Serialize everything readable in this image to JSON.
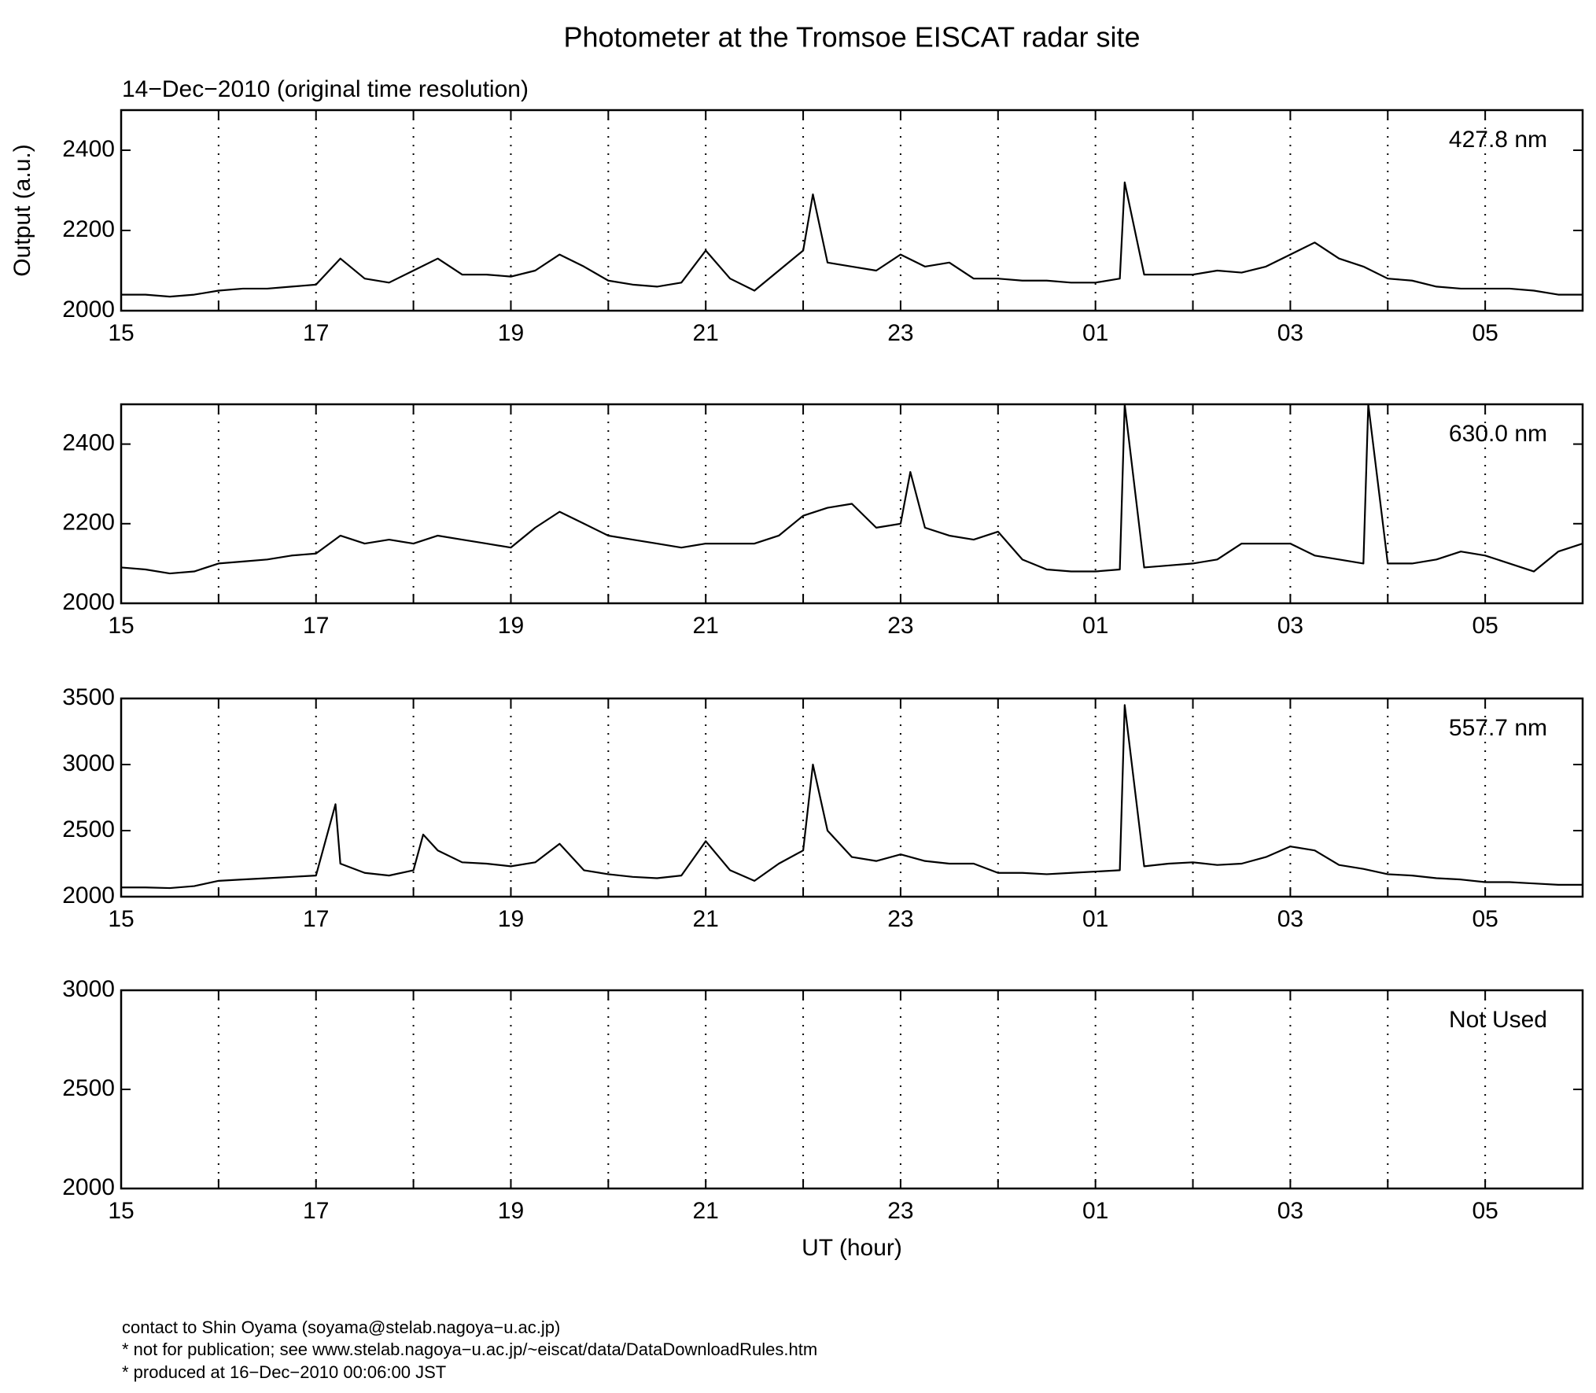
{
  "title": "Photometer at the Tromsoe EISCAT radar site",
  "subtitle": "14−Dec−2010 (original time resolution)",
  "footer": [
    "contact to Shin Oyama (soyama@stelab.nagoya−u.ac.jp)",
    "* not for publication; see www.stelab.nagoya−u.ac.jp/~eiscat/data/DataDownloadRules.htm",
    "* produced at 16−Dec−2010 00:06:00 JST"
  ],
  "chart_data": [
    {
      "type": "line",
      "annotation": "427.8 nm",
      "ylabel": "Output (a.u.)",
      "grid": true,
      "xlim": [
        15,
        30
      ],
      "xticks": [
        15,
        17,
        19,
        21,
        23,
        {
          "value": 25,
          "label": "01"
        },
        {
          "value": 27,
          "label": "03"
        },
        {
          "value": 29,
          "label": "05"
        }
      ],
      "xminor_ticks": [
        16,
        18,
        20,
        22,
        24,
        26,
        28
      ],
      "ylim": [
        2000,
        2500
      ],
      "yticks": [
        2000,
        2200,
        2400
      ],
      "x": [
        15,
        15.25,
        15.5,
        15.75,
        16,
        16.25,
        16.5,
        16.75,
        17,
        17.25,
        17.5,
        17.75,
        18,
        18.25,
        18.5,
        18.75,
        19,
        19.25,
        19.5,
        19.75,
        20,
        20.25,
        20.5,
        20.75,
        21,
        21.25,
        21.5,
        21.75,
        22,
        22.1,
        22.25,
        22.5,
        22.75,
        23,
        23.25,
        23.5,
        23.75,
        24,
        24.25,
        24.5,
        24.75,
        25,
        25.25,
        25.3,
        25.5,
        25.75,
        26,
        26.25,
        26.5,
        26.75,
        27,
        27.25,
        27.5,
        27.75,
        28,
        28.25,
        28.5,
        28.75,
        29,
        29.25,
        29.5,
        29.75,
        30
      ],
      "series": [
        {
          "name": "427.8 nm",
          "color": "#000000",
          "values": [
            2040,
            2040,
            2035,
            2040,
            2050,
            2055,
            2055,
            2060,
            2065,
            2130,
            2080,
            2070,
            2100,
            2130,
            2090,
            2090,
            2085,
            2100,
            2140,
            2110,
            2075,
            2065,
            2060,
            2070,
            2150,
            2080,
            2050,
            2100,
            2150,
            2290,
            2120,
            2110,
            2100,
            2140,
            2110,
            2120,
            2080,
            2080,
            2075,
            2075,
            2070,
            2070,
            2080,
            2320,
            2090,
            2090,
            2090,
            2100,
            2095,
            2110,
            2140,
            2170,
            2130,
            2110,
            2080,
            2075,
            2060,
            2055,
            2055,
            2055,
            2050,
            2040,
            2040
          ]
        }
      ]
    },
    {
      "type": "line",
      "annotation": "630.0 nm",
      "grid": true,
      "xlim": [
        15,
        30
      ],
      "xticks": [
        15,
        17,
        19,
        21,
        23,
        {
          "value": 25,
          "label": "01"
        },
        {
          "value": 27,
          "label": "03"
        },
        {
          "value": 29,
          "label": "05"
        }
      ],
      "xminor_ticks": [
        16,
        18,
        20,
        22,
        24,
        26,
        28
      ],
      "ylim": [
        2000,
        2500
      ],
      "yticks": [
        2000,
        2200,
        2400
      ],
      "x": [
        15,
        15.25,
        15.5,
        15.75,
        16,
        16.25,
        16.5,
        16.75,
        17,
        17.25,
        17.5,
        17.75,
        18,
        18.25,
        18.5,
        18.75,
        19,
        19.25,
        19.5,
        19.75,
        20,
        20.25,
        20.5,
        20.75,
        21,
        21.25,
        21.5,
        21.75,
        22,
        22.25,
        22.5,
        22.75,
        23,
        23.1,
        23.25,
        23.5,
        23.75,
        24,
        24.25,
        24.5,
        24.75,
        25,
        25.25,
        25.3,
        25.5,
        25.75,
        26,
        26.25,
        26.5,
        26.75,
        27,
        27.25,
        27.5,
        27.75,
        27.8,
        28,
        28.25,
        28.5,
        28.75,
        29,
        29.25,
        29.5,
        29.75,
        30
      ],
      "series": [
        {
          "name": "630.0 nm",
          "color": "#000000",
          "values": [
            2090,
            2085,
            2075,
            2080,
            2100,
            2105,
            2110,
            2120,
            2125,
            2170,
            2150,
            2160,
            2150,
            2170,
            2160,
            2150,
            2140,
            2190,
            2230,
            2200,
            2170,
            2160,
            2150,
            2140,
            2150,
            2150,
            2150,
            2170,
            2220,
            2240,
            2250,
            2190,
            2200,
            2330,
            2190,
            2170,
            2160,
            2180,
            2110,
            2085,
            2080,
            2080,
            2085,
            2500,
            2090,
            2095,
            2100,
            2110,
            2150,
            2150,
            2150,
            2120,
            2110,
            2100,
            2500,
            2100,
            2100,
            2110,
            2130,
            2120,
            2100,
            2080,
            2130,
            2150
          ]
        }
      ]
    },
    {
      "type": "line",
      "annotation": "557.7 nm",
      "grid": true,
      "xlim": [
        15,
        30
      ],
      "xticks": [
        15,
        17,
        19,
        21,
        23,
        {
          "value": 25,
          "label": "01"
        },
        {
          "value": 27,
          "label": "03"
        },
        {
          "value": 29,
          "label": "05"
        }
      ],
      "xminor_ticks": [
        16,
        18,
        20,
        22,
        24,
        26,
        28
      ],
      "ylim": [
        2000,
        3500
      ],
      "yticks": [
        2000,
        2500,
        3000,
        3500
      ],
      "x": [
        15,
        15.25,
        15.5,
        15.75,
        16,
        16.25,
        16.5,
        16.75,
        17,
        17.2,
        17.25,
        17.5,
        17.75,
        18,
        18.1,
        18.25,
        18.5,
        18.75,
        19,
        19.25,
        19.5,
        19.75,
        20,
        20.25,
        20.5,
        20.75,
        21,
        21.25,
        21.5,
        21.75,
        22,
        22.1,
        22.25,
        22.5,
        22.75,
        23,
        23.25,
        23.5,
        23.75,
        24,
        24.25,
        24.5,
        24.75,
        25,
        25.25,
        25.3,
        25.5,
        25.75,
        26,
        26.25,
        26.5,
        26.75,
        27,
        27.25,
        27.5,
        27.75,
        28,
        28.25,
        28.5,
        28.75,
        29,
        29.25,
        29.5,
        29.75,
        30
      ],
      "series": [
        {
          "name": "557.7 nm",
          "color": "#000000",
          "values": [
            2070,
            2070,
            2065,
            2080,
            2120,
            2130,
            2140,
            2150,
            2160,
            2700,
            2250,
            2180,
            2160,
            2200,
            2470,
            2350,
            2260,
            2250,
            2230,
            2260,
            2400,
            2200,
            2170,
            2150,
            2140,
            2160,
            2420,
            2200,
            2120,
            2250,
            2350,
            3000,
            2500,
            2300,
            2270,
            2320,
            2270,
            2250,
            2250,
            2180,
            2180,
            2170,
            2180,
            2190,
            2200,
            3450,
            2230,
            2250,
            2260,
            2240,
            2250,
            2300,
            2380,
            2350,
            2240,
            2210,
            2170,
            2160,
            2140,
            2130,
            2110,
            2110,
            2100,
            2090,
            2090
          ]
        }
      ]
    },
    {
      "type": "line",
      "annotation": "Not Used",
      "xlabel": "UT (hour)",
      "grid": true,
      "xlim": [
        15,
        30
      ],
      "xticks": [
        15,
        17,
        19,
        21,
        23,
        {
          "value": 25,
          "label": "01"
        },
        {
          "value": 27,
          "label": "03"
        },
        {
          "value": 29,
          "label": "05"
        }
      ],
      "xminor_ticks": [
        16,
        18,
        20,
        22,
        24,
        26,
        28
      ],
      "ylim": [
        2000,
        3000
      ],
      "yticks": [
        2000,
        2500,
        3000
      ],
      "x": [],
      "series": []
    }
  ]
}
